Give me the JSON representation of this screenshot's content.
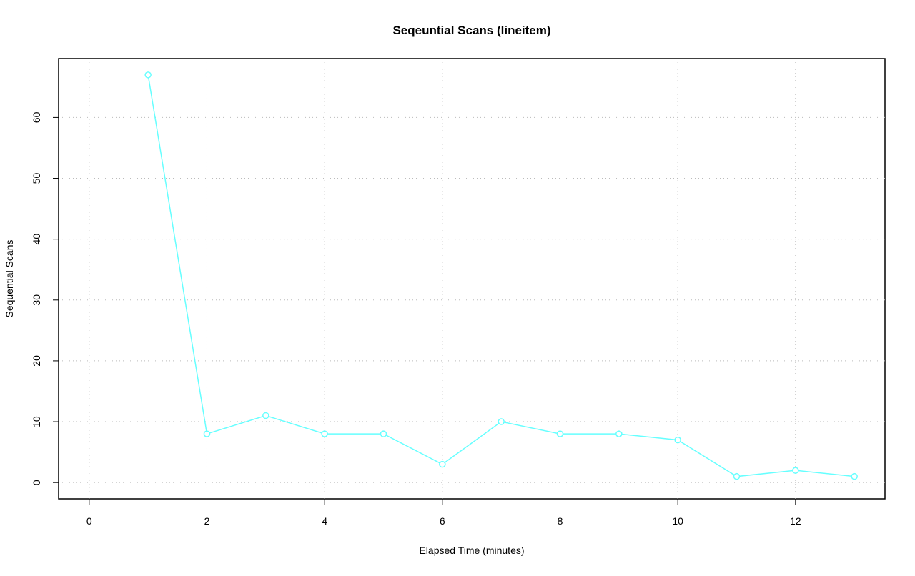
{
  "chart_data": {
    "type": "line",
    "title": "Seqeuntial Scans (lineitem)",
    "x_label": "Elapsed Time (minutes)",
    "y_label": "Sequential Scans",
    "x": [
      1,
      2,
      3,
      4,
      5,
      6,
      7,
      8,
      9,
      10,
      11,
      12,
      13
    ],
    "series": [
      {
        "name": "lineitem",
        "color": "#66ffff",
        "values": [
          67,
          8,
          11,
          8,
          8,
          3,
          10,
          8,
          8,
          7,
          1,
          2,
          1
        ]
      }
    ],
    "xlim": [
      -0.52,
      13.52
    ],
    "xticks": [
      0,
      2,
      4,
      6,
      8,
      10,
      12
    ],
    "ylim": [
      -2.68,
      69.68
    ],
    "yticks": [
      0,
      10,
      20,
      30,
      40,
      50,
      60
    ],
    "grid": true
  }
}
